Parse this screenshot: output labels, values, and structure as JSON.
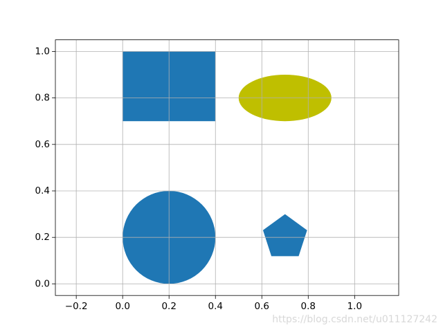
{
  "chart_data": {
    "type": "patches",
    "shapes": [
      {
        "shape": "rectangle",
        "xy": [
          0,
          0.7
        ],
        "width": 0.4,
        "height": 0.3,
        "color": "#1f77b4"
      },
      {
        "shape": "ellipse",
        "center": [
          0.7,
          0.8
        ],
        "width": 0.4,
        "height": 0.2,
        "color": "#bfbf00"
      },
      {
        "shape": "circle",
        "center": [
          0.2,
          0.2
        ],
        "radius": 0.2,
        "color": "#1f77b4"
      },
      {
        "shape": "regular-polygon",
        "center": [
          0.7,
          0.2
        ],
        "sides": 5,
        "radius": 0.1,
        "color": "#1f77b4"
      }
    ],
    "xlim": [
      -0.29,
      1.19
    ],
    "ylim": [
      -0.05,
      1.05
    ],
    "xticks": [
      {
        "value": -0.2,
        "label": "−0.2"
      },
      {
        "value": 0,
        "label": "0.0"
      },
      {
        "value": 0.2,
        "label": "0.2"
      },
      {
        "value": 0.4,
        "label": "0.4"
      },
      {
        "value": 0.6,
        "label": "0.6"
      },
      {
        "value": 0.8,
        "label": "0.8"
      },
      {
        "value": 1,
        "label": "1.0"
      }
    ],
    "yticks": [
      {
        "value": 0,
        "label": "0.0"
      },
      {
        "value": 0.2,
        "label": "0.2"
      },
      {
        "value": 0.4,
        "label": "0.4"
      },
      {
        "value": 0.6,
        "label": "0.6"
      },
      {
        "value": 0.8,
        "label": "0.8"
      },
      {
        "value": 1,
        "label": "1.0"
      }
    ],
    "grid": true
  },
  "watermark": "https://blog.csdn.net/u011127242"
}
